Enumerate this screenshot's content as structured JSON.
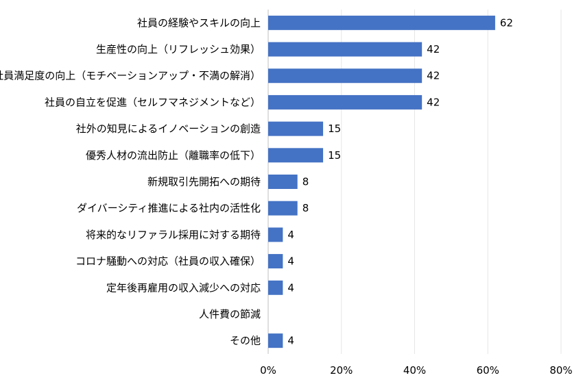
{
  "chart_data": {
    "type": "bar",
    "orientation": "horizontal",
    "categories": [
      "社員の経験やスキルの向上",
      "生産性の向上（リフレッシュ効果）",
      "社員満足度の向上（モチベーションアップ・不満の解消）",
      "社員の自立を促進（セルフマネジメントなど）",
      "社外の知見によるイノベーションの創造",
      "優秀人材の流出防止（離職率の低下）",
      "新規取引先開拓への期待",
      "ダイバーシティ推進による社内の活性化",
      "将来的なリファラル採用に対する期待",
      "コロナ騒動への対応（社員の収入確保）",
      "定年後再雇用の収入減少への対応",
      "人件費の節減",
      "その他"
    ],
    "values": [
      62,
      42,
      42,
      42,
      15,
      15,
      8,
      8,
      4,
      4,
      4,
      null,
      4
    ],
    "xlim": [
      0,
      80
    ],
    "xticks": [
      "0%",
      "20%",
      "40%",
      "60%",
      "80%"
    ],
    "bar_color": "#4472C4",
    "gridlines": true
  }
}
